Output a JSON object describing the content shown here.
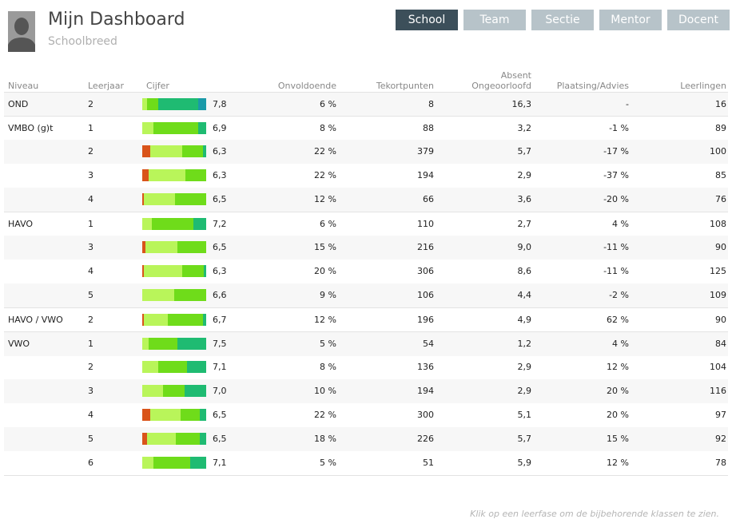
{
  "header": {
    "title": "Mijn Dashboard",
    "subtitle": "Schoolbreed",
    "tabs": [
      {
        "label": "School",
        "active": true
      },
      {
        "label": "Team",
        "active": false
      },
      {
        "label": "Sectie",
        "active": false
      },
      {
        "label": "Mentor",
        "active": false
      },
      {
        "label": "Docent",
        "active": false
      }
    ]
  },
  "columns": {
    "niveau": "Niveau",
    "leerjaar": "Leerjaar",
    "cijfer": "Cijfer",
    "onvoldoende": "Onvoldoende",
    "tekortpunten": "Tekortpunten",
    "absent_line1": "Absent",
    "absent_line2": "Ongeoorloofd",
    "plaatsing": "Plaatsing/Advies",
    "leerlingen": "Leerlingen"
  },
  "colors": {
    "dark_red": "#d9541a",
    "light_green": "#b9f55a",
    "green": "#6fdc1a",
    "teal": "#1fbb72",
    "cyan": "#1a9aa8"
  },
  "rows": [
    {
      "niveau": "OND",
      "leerjaar": "2",
      "cijfer": "7,8",
      "onvoldoende": "6 %",
      "tekortpunten": "8",
      "absent": "16,3",
      "plaatsing": "-",
      "leerlingen": "16",
      "dist": [
        0,
        0.07,
        0.18,
        0.62,
        0.13
      ]
    },
    {
      "niveau": "VMBO (g)t",
      "leerjaar": "1",
      "cijfer": "6,9",
      "onvoldoende": "8 %",
      "tekortpunten": "88",
      "absent": "3,2",
      "plaatsing": "-1 %",
      "leerlingen": "89",
      "dist": [
        0,
        0.18,
        0.7,
        0.12,
        0
      ]
    },
    {
      "niveau": "",
      "leerjaar": "2",
      "cijfer": "6,3",
      "onvoldoende": "22 %",
      "tekortpunten": "379",
      "absent": "5,7",
      "plaatsing": "-17 %",
      "leerlingen": "100",
      "dist": [
        0.12,
        0.5,
        0.33,
        0.05,
        0
      ]
    },
    {
      "niveau": "",
      "leerjaar": "3",
      "cijfer": "6,3",
      "onvoldoende": "22 %",
      "tekortpunten": "194",
      "absent": "2,9",
      "plaatsing": "-37 %",
      "leerlingen": "85",
      "dist": [
        0.1,
        0.58,
        0.32,
        0,
        0
      ]
    },
    {
      "niveau": "",
      "leerjaar": "4",
      "cijfer": "6,5",
      "onvoldoende": "12 %",
      "tekortpunten": "66",
      "absent": "3,6",
      "plaatsing": "-20 %",
      "leerlingen": "76",
      "dist": [
        0.03,
        0.48,
        0.49,
        0,
        0
      ]
    },
    {
      "niveau": "HAVO",
      "leerjaar": "1",
      "cijfer": "7,2",
      "onvoldoende": "6 %",
      "tekortpunten": "110",
      "absent": "2,7",
      "plaatsing": "4 %",
      "leerlingen": "108",
      "dist": [
        0,
        0.15,
        0.65,
        0.2,
        0
      ]
    },
    {
      "niveau": "",
      "leerjaar": "3",
      "cijfer": "6,5",
      "onvoldoende": "15 %",
      "tekortpunten": "216",
      "absent": "9,0",
      "plaatsing": "-11 %",
      "leerlingen": "90",
      "dist": [
        0.05,
        0.5,
        0.45,
        0,
        0
      ]
    },
    {
      "niveau": "",
      "leerjaar": "4",
      "cijfer": "6,3",
      "onvoldoende": "20 %",
      "tekortpunten": "306",
      "absent": "8,6",
      "plaatsing": "-11 %",
      "leerlingen": "125",
      "dist": [
        0.03,
        0.6,
        0.33,
        0.04,
        0
      ]
    },
    {
      "niveau": "",
      "leerjaar": "5",
      "cijfer": "6,6",
      "onvoldoende": "9 %",
      "tekortpunten": "106",
      "absent": "4,4",
      "plaatsing": "-2 %",
      "leerlingen": "109",
      "dist": [
        0,
        0.5,
        0.5,
        0,
        0
      ]
    },
    {
      "niveau": "HAVO / VWO",
      "leerjaar": "2",
      "cijfer": "6,7",
      "onvoldoende": "12 %",
      "tekortpunten": "196",
      "absent": "4,9",
      "plaatsing": "62 %",
      "leerlingen": "90",
      "dist": [
        0.03,
        0.37,
        0.55,
        0.05,
        0
      ]
    },
    {
      "niveau": "VWO",
      "leerjaar": "1",
      "cijfer": "7,5",
      "onvoldoende": "5 %",
      "tekortpunten": "54",
      "absent": "1,2",
      "plaatsing": "4 %",
      "leerlingen": "84",
      "dist": [
        0,
        0.1,
        0.45,
        0.45,
        0
      ]
    },
    {
      "niveau": "",
      "leerjaar": "2",
      "cijfer": "7,1",
      "onvoldoende": "8 %",
      "tekortpunten": "136",
      "absent": "2,9",
      "plaatsing": "12 %",
      "leerlingen": "104",
      "dist": [
        0,
        0.25,
        0.45,
        0.3,
        0
      ]
    },
    {
      "niveau": "",
      "leerjaar": "3",
      "cijfer": "7,0",
      "onvoldoende": "10 %",
      "tekortpunten": "194",
      "absent": "2,9",
      "plaatsing": "20 %",
      "leerlingen": "116",
      "dist": [
        0,
        0.33,
        0.33,
        0.34,
        0
      ]
    },
    {
      "niveau": "",
      "leerjaar": "4",
      "cijfer": "6,5",
      "onvoldoende": "22 %",
      "tekortpunten": "300",
      "absent": "5,1",
      "plaatsing": "20 %",
      "leerlingen": "97",
      "dist": [
        0.12,
        0.48,
        0.3,
        0.1,
        0
      ]
    },
    {
      "niveau": "",
      "leerjaar": "5",
      "cijfer": "6,5",
      "onvoldoende": "18 %",
      "tekortpunten": "226",
      "absent": "5,7",
      "plaatsing": "15 %",
      "leerlingen": "92",
      "dist": [
        0.08,
        0.45,
        0.37,
        0.1,
        0
      ]
    },
    {
      "niveau": "",
      "leerjaar": "6",
      "cijfer": "7,1",
      "onvoldoende": "5 %",
      "tekortpunten": "51",
      "absent": "5,9",
      "plaatsing": "12 %",
      "leerlingen": "78",
      "dist": [
        0,
        0.18,
        0.57,
        0.25,
        0
      ]
    }
  ],
  "footer": "Klik op een leerfase om de bijbehorende klassen te zien."
}
